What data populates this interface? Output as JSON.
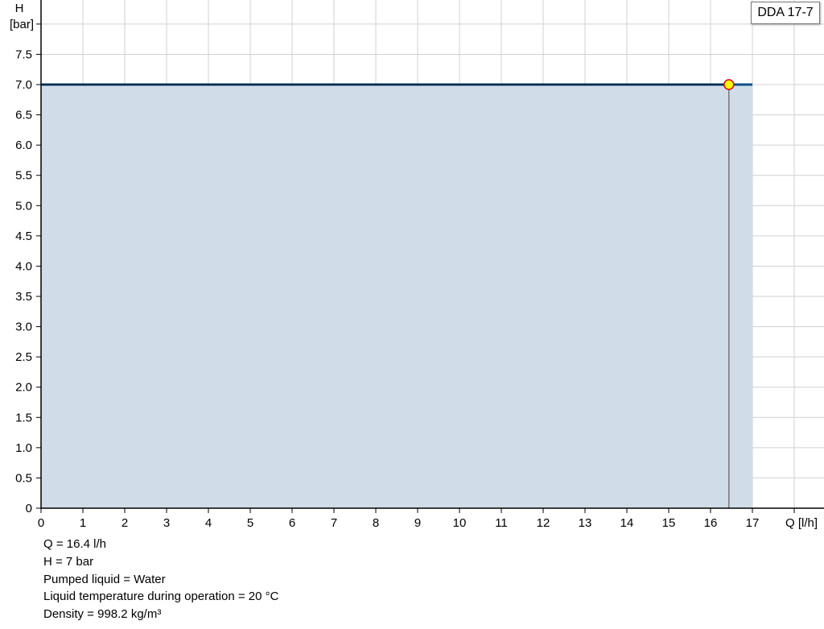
{
  "chart_data": {
    "type": "area",
    "xlabel": "Q [l/h]",
    "ylabel_line1": "H",
    "ylabel_line2": "[bar]",
    "xlim": [
      0,
      18.9
    ],
    "ylim": [
      0,
      8.4
    ],
    "x_ticks": [
      0,
      1,
      2,
      3,
      4,
      5,
      6,
      7,
      8,
      9,
      10,
      11,
      12,
      13,
      14,
      15,
      16,
      17
    ],
    "y_ticks": [
      "0",
      "0.5",
      "1.0",
      "1.5",
      "2.0",
      "2.5",
      "3.0",
      "3.5",
      "4.0",
      "4.5",
      "5.0",
      "5.5",
      "6.0",
      "6.5",
      "7.0",
      "7.5"
    ],
    "grid": true,
    "series": [
      {
        "name": "DDA 17-7",
        "x": [
          0,
          17
        ],
        "y": [
          7.0,
          7.0
        ]
      }
    ],
    "operating_point": {
      "x": 16.4,
      "y": 7.0
    },
    "legend_placement": "top-right",
    "colors": {
      "curve": "#0b4f8a",
      "fill": "#d0dce8",
      "point_fill": "#ffff00",
      "point_stroke": "#e00000",
      "grid": "#d0d0d0"
    }
  },
  "info": [
    "Q = 16.4 l/h",
    "H = 7 bar",
    "Pumped liquid = Water",
    "Liquid temperature during operation = 20 °C",
    "Density = 998.2 kg/m³"
  ]
}
